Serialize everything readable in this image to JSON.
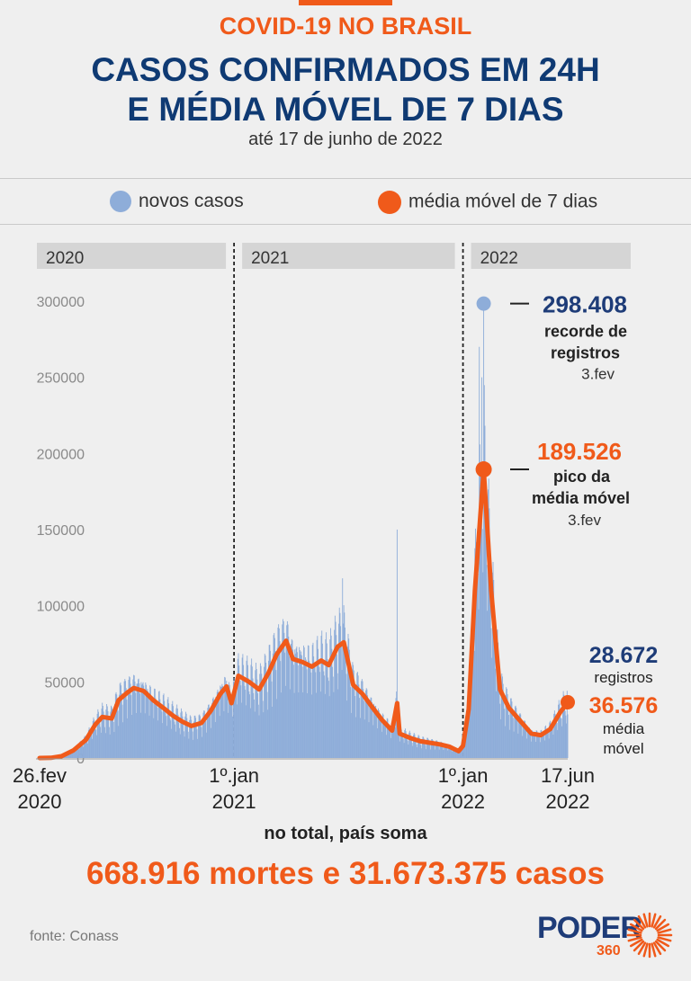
{
  "header": {
    "kicker": "COVID-19 NO BRASIL",
    "title_line1": "CASOS CONFIRMADOS EM 24H",
    "title_line2": "E MÉDIA MÓVEL DE 7 DIAS",
    "subtitle": "até 17 de junho de 2022"
  },
  "legend": [
    {
      "label": "novos casos",
      "color": "#8eadd9"
    },
    {
      "label": "média móvel de 7 dias",
      "color": "#f05a1a"
    }
  ],
  "chart_data": {
    "type": "bar",
    "series": [
      {
        "name": "novos casos",
        "type": "bar",
        "color": "#8eadd9"
      },
      {
        "name": "média móvel de 7 dias",
        "type": "line",
        "color": "#f05a1a"
      }
    ],
    "x_start": "2020-02-26",
    "x_end": "2022-06-17",
    "ylim": [
      0,
      310000
    ],
    "yticks": [
      "300000",
      "250000",
      "200000",
      "150000",
      "100000",
      "50000",
      "0"
    ],
    "xticks": [
      {
        "line1": "26.fev",
        "line2": "2020",
        "date": "2020-02-26"
      },
      {
        "line1": "1º.jan",
        "line2": "2021",
        "date": "2021-01-01"
      },
      {
        "line1": "1º.jan",
        "line2": "2022",
        "date": "2022-01-01"
      },
      {
        "line1": "17.jun",
        "line2": "2022",
        "date": "2022-06-17"
      }
    ],
    "year_bands": [
      {
        "label": "2020",
        "start": "2020-02-26",
        "end": "2020-12-31"
      },
      {
        "label": "2021",
        "start": "2021-01-01",
        "end": "2021-12-31"
      },
      {
        "label": "2022",
        "start": "2022-01-01",
        "end": "2022-06-17"
      }
    ],
    "moving_average": [
      [
        "2020-02-26",
        0
      ],
      [
        "2020-03-15",
        100
      ],
      [
        "2020-04-01",
        1200
      ],
      [
        "2020-04-20",
        5000
      ],
      [
        "2020-05-10",
        12000
      ],
      [
        "2020-05-25",
        22000
      ],
      [
        "2020-06-05",
        27000
      ],
      [
        "2020-06-20",
        26000
      ],
      [
        "2020-07-01",
        38000
      ],
      [
        "2020-07-15",
        43000
      ],
      [
        "2020-07-25",
        46000
      ],
      [
        "2020-08-10",
        44000
      ],
      [
        "2020-08-25",
        38000
      ],
      [
        "2020-09-10",
        33000
      ],
      [
        "2020-09-25",
        28000
      ],
      [
        "2020-10-10",
        24000
      ],
      [
        "2020-10-25",
        21000
      ],
      [
        "2020-11-10",
        23000
      ],
      [
        "2020-11-25",
        31000
      ],
      [
        "2020-12-10",
        42000
      ],
      [
        "2020-12-20",
        47000
      ],
      [
        "2020-12-28",
        36000
      ],
      [
        "2021-01-08",
        54000
      ],
      [
        "2021-01-25",
        50000
      ],
      [
        "2021-02-10",
        45000
      ],
      [
        "2021-02-25",
        56000
      ],
      [
        "2021-03-10",
        68000
      ],
      [
        "2021-03-25",
        77000
      ],
      [
        "2021-04-05",
        65000
      ],
      [
        "2021-04-20",
        63000
      ],
      [
        "2021-05-05",
        60000
      ],
      [
        "2021-05-20",
        64000
      ],
      [
        "2021-06-01",
        61000
      ],
      [
        "2021-06-15",
        73000
      ],
      [
        "2021-06-25",
        76000
      ],
      [
        "2021-07-10",
        48000
      ],
      [
        "2021-07-25",
        42000
      ],
      [
        "2021-08-10",
        33000
      ],
      [
        "2021-08-25",
        25000
      ],
      [
        "2021-09-10",
        18000
      ],
      [
        "2021-09-18",
        36000
      ],
      [
        "2021-09-22",
        16000
      ],
      [
        "2021-10-10",
        13000
      ],
      [
        "2021-10-25",
        11000
      ],
      [
        "2021-11-10",
        10000
      ],
      [
        "2021-11-25",
        9000
      ],
      [
        "2021-12-10",
        7500
      ],
      [
        "2021-12-25",
        4500
      ],
      [
        "2022-01-01",
        8000
      ],
      [
        "2022-01-10",
        32000
      ],
      [
        "2022-01-20",
        110000
      ],
      [
        "2022-02-03",
        189526
      ],
      [
        "2022-02-15",
        110000
      ],
      [
        "2022-03-01",
        45000
      ],
      [
        "2022-03-15",
        33000
      ],
      [
        "2022-04-01",
        25000
      ],
      [
        "2022-04-20",
        16000
      ],
      [
        "2022-05-05",
        15000
      ],
      [
        "2022-05-20",
        19000
      ],
      [
        "2022-06-05",
        30000
      ],
      [
        "2022-06-17",
        36576
      ]
    ],
    "annotations": [
      {
        "value": "298.408",
        "line2": "recorde de",
        "line3": "registros",
        "date_label": "3.fev",
        "date": "2022-02-03",
        "y": 298408,
        "color": "#1e3c78"
      },
      {
        "value": "189.526",
        "line2": "pico da",
        "line3": "média móvel",
        "date_label": "3.fev",
        "date": "2022-02-03",
        "y": 189526,
        "color": "#f05a1a"
      },
      {
        "value": "28.672",
        "line2": "registros",
        "date": "2022-06-17",
        "y": 28672,
        "color": "#1e3c78"
      },
      {
        "value": "36.576",
        "line2": "média",
        "line3": "móvel",
        "date": "2022-06-17",
        "y": 36576,
        "color": "#f05a1a"
      }
    ]
  },
  "footer": {
    "lead": "no total, país soma",
    "total": "668.916 mortes e 31.673.375 casos",
    "source": "fonte: Conass",
    "logo_word": "PODER",
    "logo_number": "360"
  }
}
